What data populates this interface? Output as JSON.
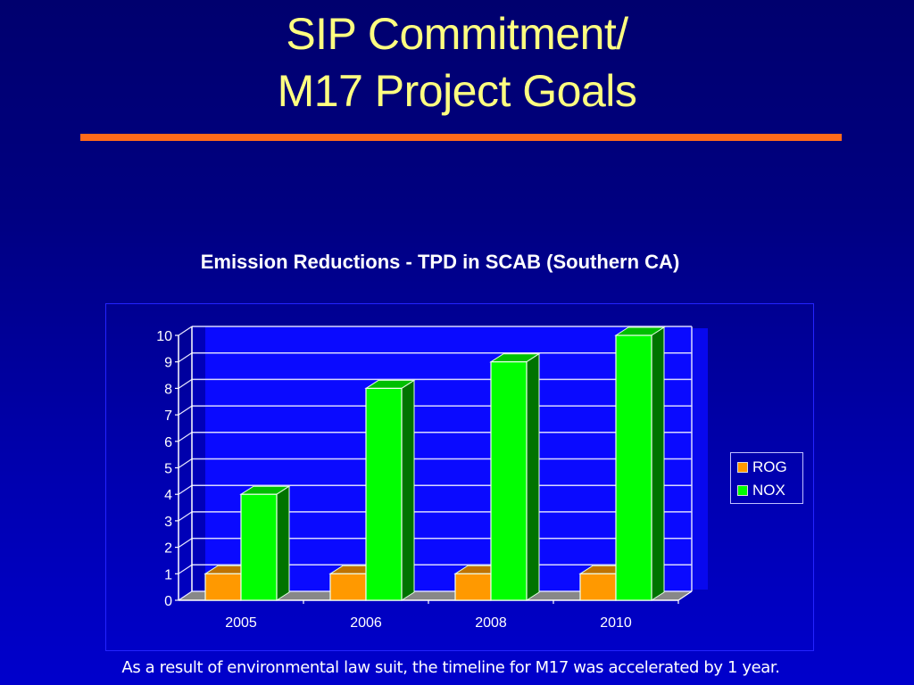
{
  "slide": {
    "title_line1": "SIP Commitment/",
    "title_line2": "M17 Project Goals",
    "accent_rule_color": "#ff6a1a",
    "footnote": "As a result of environmental law suit, the timeline for M17 was accelerated by 1 year."
  },
  "legend": {
    "items": [
      {
        "label": "ROG",
        "color": "#ff9900"
      },
      {
        "label": "NOX",
        "color": "#00ff00"
      }
    ]
  },
  "chart_data": {
    "type": "bar",
    "style": "3d-clustered-column",
    "title": "Emission Reductions - TPD in SCAB (Southern CA)",
    "xlabel": "",
    "ylabel": "",
    "categories": [
      "2005",
      "2006",
      "2008",
      "2010"
    ],
    "series": [
      {
        "name": "ROG",
        "color": "#ff9900",
        "values": [
          1,
          1,
          1,
          1
        ]
      },
      {
        "name": "NOX",
        "color": "#00ff00",
        "values": [
          4,
          8,
          9,
          10
        ]
      }
    ],
    "ylim": [
      0,
      10
    ],
    "yticks": [
      "0",
      "1",
      "2",
      "3",
      "4",
      "5",
      "6",
      "7",
      "8",
      "9",
      "10"
    ],
    "grid": true,
    "legend_position": "right"
  }
}
